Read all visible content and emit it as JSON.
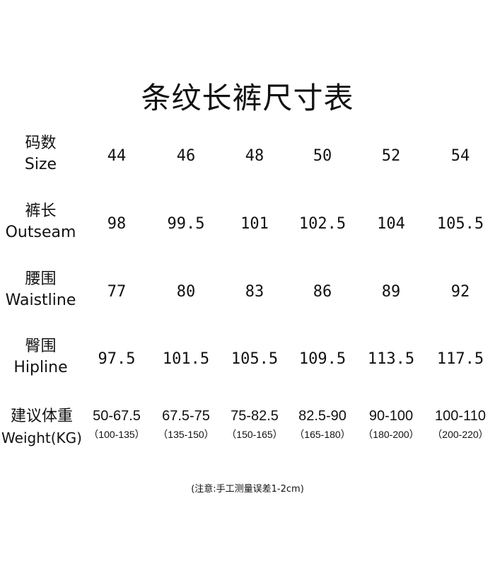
{
  "title": "条纹长裤尺寸表",
  "rows": [
    {
      "label_cn": "码数",
      "label_en": "Size",
      "values": [
        "44",
        "46",
        "48",
        "50",
        "52",
        "54"
      ]
    },
    {
      "label_cn": "裤长",
      "label_en": "Outseam",
      "values": [
        "98",
        "99.5",
        "101",
        "102.5",
        "104",
        "105.5"
      ]
    },
    {
      "label_cn": "腰围",
      "label_en": "Waistline",
      "values": [
        "77",
        "80",
        "83",
        "86",
        "89",
        "92"
      ]
    },
    {
      "label_cn": "臀围",
      "label_en": "Hipline",
      "values": [
        "97.5",
        "101.5",
        "105.5",
        "109.5",
        "113.5",
        "117.5"
      ]
    }
  ],
  "weight": {
    "label_cn": "建议体重",
    "label_en": "Weight(KG)",
    "values": [
      "50-67.5",
      "67.5-75",
      "75-82.5",
      "82.5-90",
      "90-100",
      "100-110"
    ],
    "sub_values": [
      "（100-135）",
      "（135-150）",
      "（150-165）",
      "（165-180）",
      "（180-200）",
      "（200-220）"
    ]
  },
  "note": "(注意:手工测量误差1-2cm)"
}
